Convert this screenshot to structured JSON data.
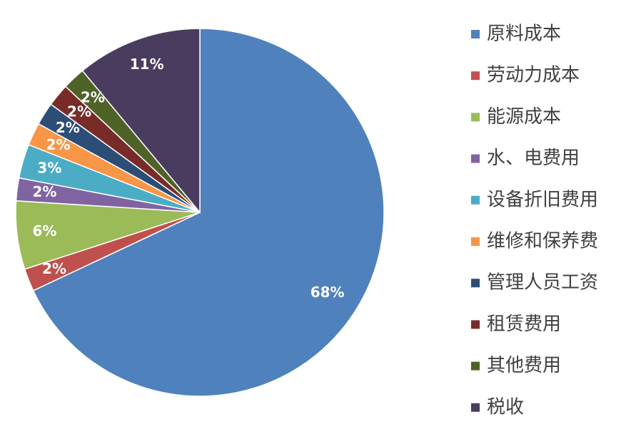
{
  "chart_data": {
    "type": "pie",
    "categories": [
      "原料成本",
      "劳动力成本",
      "能源成本",
      "水、电费用",
      "设备折旧费用",
      "维修和保养费",
      "管理人员工资",
      "租赁费用",
      "其他费用",
      "税收"
    ],
    "values": [
      68,
      2,
      6,
      2,
      3,
      2,
      2,
      2,
      2,
      11
    ],
    "value_labels": [
      "68%",
      "2%",
      "6%",
      "2%",
      "3%",
      "2%",
      "2%",
      "2%",
      "2%",
      "11%"
    ],
    "colors": [
      "#4f81bd",
      "#c0504d",
      "#9bbb59",
      "#8064a2",
      "#4bacc6",
      "#f79646",
      "#2c4d75",
      "#772c2a",
      "#4f6228",
      "#4a3c5e"
    ],
    "legend": "right"
  }
}
